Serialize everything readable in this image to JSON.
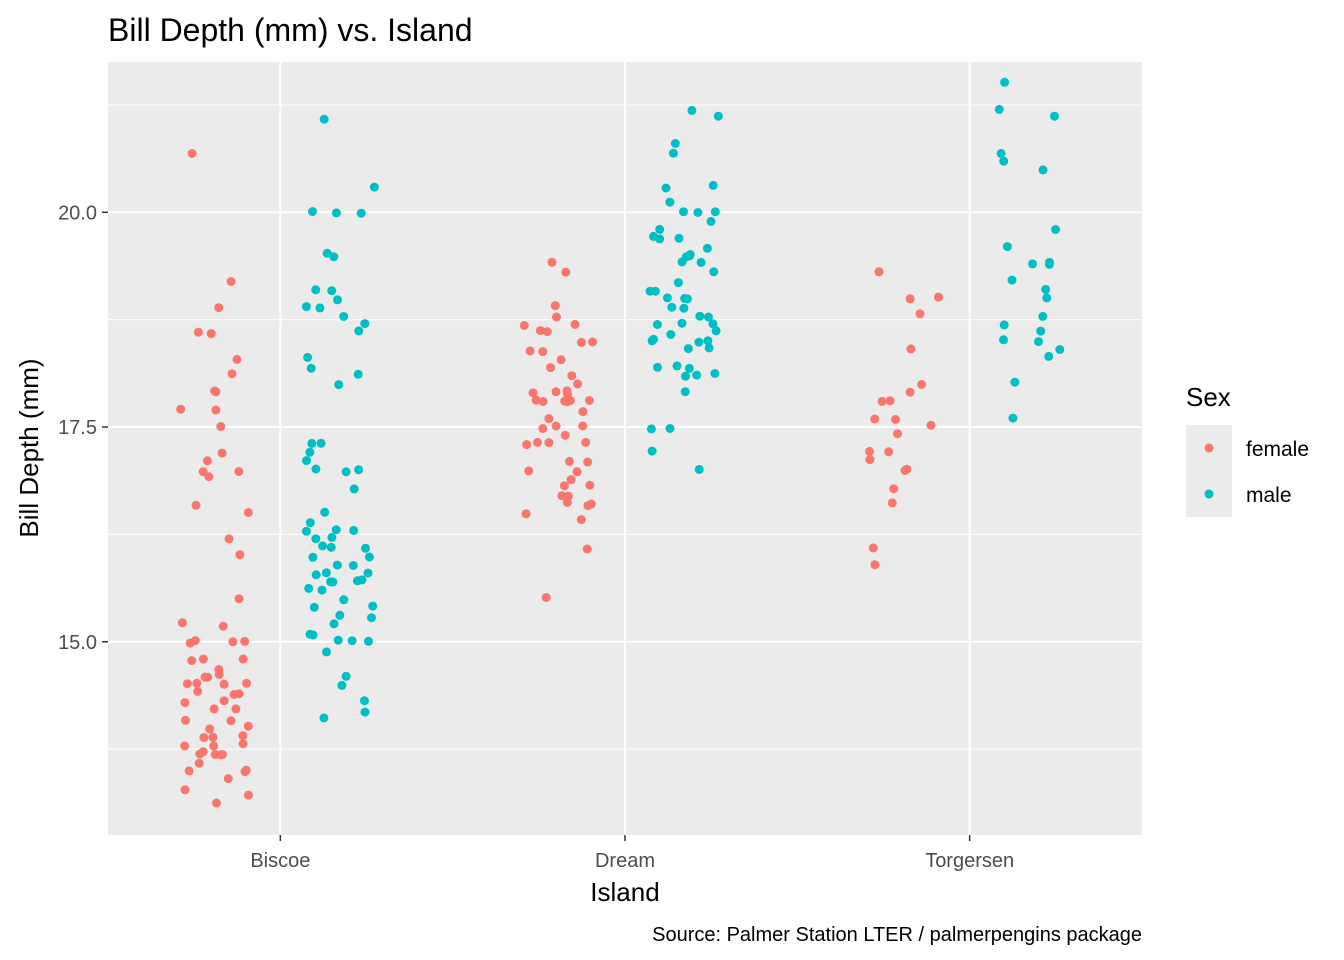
{
  "chart_data": {
    "type": "scatter",
    "title": "Bill Depth (mm) vs. Island",
    "xlabel": "Island",
    "ylabel": "Bill Depth (mm)",
    "caption": "Source: Palmer Station LTER / palmerpengins package",
    "categories": [
      "Biscoe",
      "Dream",
      "Torgersen"
    ],
    "ylim": [
      12.75,
      21.75
    ],
    "yticks": [
      15.0,
      17.5,
      20.0
    ],
    "ytick_labels": [
      "15.0",
      "17.5",
      "20.0"
    ],
    "grid": true,
    "legend": {
      "title": "Sex",
      "placement": "right",
      "entries": [
        "female",
        "male"
      ]
    },
    "colors": {
      "female": "#F8766D",
      "male": "#00BFC4"
    },
    "series": [
      {
        "name": "female",
        "points": [
          [
            "Biscoe",
            20.7
          ],
          [
            "Biscoe",
            19.2
          ],
          [
            "Biscoe",
            18.9
          ],
          [
            "Biscoe",
            18.6
          ],
          [
            "Biscoe",
            18.6
          ],
          [
            "Biscoe",
            18.3
          ],
          [
            "Biscoe",
            18.1
          ],
          [
            "Biscoe",
            17.9
          ],
          [
            "Biscoe",
            17.9
          ],
          [
            "Biscoe",
            17.7
          ],
          [
            "Biscoe",
            17.7
          ],
          [
            "Biscoe",
            17.5
          ],
          [
            "Biscoe",
            17.2
          ],
          [
            "Biscoe",
            17.1
          ],
          [
            "Biscoe",
            17.0
          ],
          [
            "Biscoe",
            17.0
          ],
          [
            "Biscoe",
            16.9
          ],
          [
            "Biscoe",
            16.6
          ],
          [
            "Biscoe",
            16.5
          ],
          [
            "Biscoe",
            16.2
          ],
          [
            "Biscoe",
            16.0
          ],
          [
            "Biscoe",
            15.5
          ],
          [
            "Biscoe",
            15.2
          ],
          [
            "Biscoe",
            15.2
          ],
          [
            "Biscoe",
            15.0
          ],
          [
            "Biscoe",
            15.0
          ],
          [
            "Biscoe",
            15.0
          ],
          [
            "Biscoe",
            15.0
          ],
          [
            "Biscoe",
            14.8
          ],
          [
            "Biscoe",
            14.8
          ],
          [
            "Biscoe",
            14.8
          ],
          [
            "Biscoe",
            14.7
          ],
          [
            "Biscoe",
            14.6
          ],
          [
            "Biscoe",
            14.6
          ],
          [
            "Biscoe",
            14.6
          ],
          [
            "Biscoe",
            14.5
          ],
          [
            "Biscoe",
            14.5
          ],
          [
            "Biscoe",
            14.5
          ],
          [
            "Biscoe",
            14.5
          ],
          [
            "Biscoe",
            14.4
          ],
          [
            "Biscoe",
            14.4
          ],
          [
            "Biscoe",
            14.4
          ],
          [
            "Biscoe",
            14.3
          ],
          [
            "Biscoe",
            14.3
          ],
          [
            "Biscoe",
            14.2
          ],
          [
            "Biscoe",
            14.2
          ],
          [
            "Biscoe",
            14.1
          ],
          [
            "Biscoe",
            14.1
          ],
          [
            "Biscoe",
            14.0
          ],
          [
            "Biscoe",
            14.0
          ],
          [
            "Biscoe",
            13.9
          ],
          [
            "Biscoe",
            13.9
          ],
          [
            "Biscoe",
            13.9
          ],
          [
            "Biscoe",
            13.8
          ],
          [
            "Biscoe",
            13.8
          ],
          [
            "Biscoe",
            13.8
          ],
          [
            "Biscoe",
            13.7
          ],
          [
            "Biscoe",
            13.7
          ],
          [
            "Biscoe",
            13.7
          ],
          [
            "Biscoe",
            13.7
          ],
          [
            "Biscoe",
            13.7
          ],
          [
            "Biscoe",
            13.6
          ],
          [
            "Biscoe",
            13.5
          ],
          [
            "Biscoe",
            13.5
          ],
          [
            "Biscoe",
            13.5
          ],
          [
            "Biscoe",
            13.4
          ],
          [
            "Biscoe",
            13.3
          ],
          [
            "Biscoe",
            13.2
          ],
          [
            "Biscoe",
            13.1
          ],
          [
            "Dream",
            19.4
          ],
          [
            "Dream",
            19.3
          ],
          [
            "Dream",
            18.9
          ],
          [
            "Dream",
            18.8
          ],
          [
            "Dream",
            18.7
          ],
          [
            "Dream",
            18.7
          ],
          [
            "Dream",
            18.6
          ],
          [
            "Dream",
            18.6
          ],
          [
            "Dream",
            18.5
          ],
          [
            "Dream",
            18.5
          ],
          [
            "Dream",
            18.4
          ],
          [
            "Dream",
            18.4
          ],
          [
            "Dream",
            18.3
          ],
          [
            "Dream",
            18.2
          ],
          [
            "Dream",
            18.1
          ],
          [
            "Dream",
            18.0
          ],
          [
            "Dream",
            17.9
          ],
          [
            "Dream",
            17.9
          ],
          [
            "Dream",
            17.9
          ],
          [
            "Dream",
            17.9
          ],
          [
            "Dream",
            17.8
          ],
          [
            "Dream",
            17.8
          ],
          [
            "Dream",
            17.8
          ],
          [
            "Dream",
            17.8
          ],
          [
            "Dream",
            17.8
          ],
          [
            "Dream",
            17.8
          ],
          [
            "Dream",
            17.7
          ],
          [
            "Dream",
            17.6
          ],
          [
            "Dream",
            17.5
          ],
          [
            "Dream",
            17.5
          ],
          [
            "Dream",
            17.5
          ],
          [
            "Dream",
            17.4
          ],
          [
            "Dream",
            17.3
          ],
          [
            "Dream",
            17.3
          ],
          [
            "Dream",
            17.3
          ],
          [
            "Dream",
            17.3
          ],
          [
            "Dream",
            17.1
          ],
          [
            "Dream",
            17.1
          ],
          [
            "Dream",
            17.0
          ],
          [
            "Dream",
            17.0
          ],
          [
            "Dream",
            16.9
          ],
          [
            "Dream",
            16.8
          ],
          [
            "Dream",
            16.8
          ],
          [
            "Dream",
            16.7
          ],
          [
            "Dream",
            16.7
          ],
          [
            "Dream",
            16.6
          ],
          [
            "Dream",
            16.6
          ],
          [
            "Dream",
            16.6
          ],
          [
            "Dream",
            16.5
          ],
          [
            "Dream",
            16.4
          ],
          [
            "Dream",
            16.1
          ],
          [
            "Dream",
            15.5
          ],
          [
            "Torgersen",
            19.3
          ],
          [
            "Torgersen",
            19.0
          ],
          [
            "Torgersen",
            19.0
          ],
          [
            "Torgersen",
            18.8
          ],
          [
            "Torgersen",
            18.4
          ],
          [
            "Torgersen",
            18.0
          ],
          [
            "Torgersen",
            17.9
          ],
          [
            "Torgersen",
            17.8
          ],
          [
            "Torgersen",
            17.8
          ],
          [
            "Torgersen",
            17.6
          ],
          [
            "Torgersen",
            17.6
          ],
          [
            "Torgersen",
            17.5
          ],
          [
            "Torgersen",
            17.4
          ],
          [
            "Torgersen",
            17.2
          ],
          [
            "Torgersen",
            17.2
          ],
          [
            "Torgersen",
            17.1
          ],
          [
            "Torgersen",
            17.0
          ],
          [
            "Torgersen",
            17.0
          ],
          [
            "Torgersen",
            16.8
          ],
          [
            "Torgersen",
            16.6
          ],
          [
            "Torgersen",
            16.1
          ],
          [
            "Torgersen",
            15.9
          ]
        ]
      },
      {
        "name": "male",
        "points": [
          [
            "Biscoe",
            21.1
          ],
          [
            "Biscoe",
            20.3
          ],
          [
            "Biscoe",
            20.0
          ],
          [
            "Biscoe",
            20.0
          ],
          [
            "Biscoe",
            20.0
          ],
          [
            "Biscoe",
            19.5
          ],
          [
            "Biscoe",
            19.5
          ],
          [
            "Biscoe",
            19.1
          ],
          [
            "Biscoe",
            19.1
          ],
          [
            "Biscoe",
            19.0
          ],
          [
            "Biscoe",
            18.9
          ],
          [
            "Biscoe",
            18.9
          ],
          [
            "Biscoe",
            18.8
          ],
          [
            "Biscoe",
            18.7
          ],
          [
            "Biscoe",
            18.6
          ],
          [
            "Biscoe",
            18.3
          ],
          [
            "Biscoe",
            18.2
          ],
          [
            "Biscoe",
            18.1
          ],
          [
            "Biscoe",
            18.0
          ],
          [
            "Biscoe",
            17.3
          ],
          [
            "Biscoe",
            17.3
          ],
          [
            "Biscoe",
            17.2
          ],
          [
            "Biscoe",
            17.1
          ],
          [
            "Biscoe",
            17.0
          ],
          [
            "Biscoe",
            17.0
          ],
          [
            "Biscoe",
            17.0
          ],
          [
            "Biscoe",
            16.8
          ],
          [
            "Biscoe",
            16.5
          ],
          [
            "Biscoe",
            16.4
          ],
          [
            "Biscoe",
            16.3
          ],
          [
            "Biscoe",
            16.3
          ],
          [
            "Biscoe",
            16.3
          ],
          [
            "Biscoe",
            16.2
          ],
          [
            "Biscoe",
            16.2
          ],
          [
            "Biscoe",
            16.1
          ],
          [
            "Biscoe",
            16.1
          ],
          [
            "Biscoe",
            16.1
          ],
          [
            "Biscoe",
            16.0
          ],
          [
            "Biscoe",
            16.0
          ],
          [
            "Biscoe",
            15.9
          ],
          [
            "Biscoe",
            15.9
          ],
          [
            "Biscoe",
            15.8
          ],
          [
            "Biscoe",
            15.8
          ],
          [
            "Biscoe",
            15.8
          ],
          [
            "Biscoe",
            15.7
          ],
          [
            "Biscoe",
            15.7
          ],
          [
            "Biscoe",
            15.7
          ],
          [
            "Biscoe",
            15.7
          ],
          [
            "Biscoe",
            15.6
          ],
          [
            "Biscoe",
            15.6
          ],
          [
            "Biscoe",
            15.5
          ],
          [
            "Biscoe",
            15.4
          ],
          [
            "Biscoe",
            15.4
          ],
          [
            "Biscoe",
            15.3
          ],
          [
            "Biscoe",
            15.3
          ],
          [
            "Biscoe",
            15.2
          ],
          [
            "Biscoe",
            15.1
          ],
          [
            "Biscoe",
            15.1
          ],
          [
            "Biscoe",
            15.0
          ],
          [
            "Biscoe",
            15.0
          ],
          [
            "Biscoe",
            15.0
          ],
          [
            "Biscoe",
            14.9
          ],
          [
            "Biscoe",
            14.6
          ],
          [
            "Biscoe",
            14.5
          ],
          [
            "Biscoe",
            14.3
          ],
          [
            "Biscoe",
            14.2
          ],
          [
            "Biscoe",
            14.1
          ],
          [
            "Dream",
            21.2
          ],
          [
            "Dream",
            21.1
          ],
          [
            "Dream",
            20.8
          ],
          [
            "Dream",
            20.7
          ],
          [
            "Dream",
            20.3
          ],
          [
            "Dream",
            20.3
          ],
          [
            "Dream",
            20.1
          ],
          [
            "Dream",
            20.0
          ],
          [
            "Dream",
            20.0
          ],
          [
            "Dream",
            20.0
          ],
          [
            "Dream",
            19.9
          ],
          [
            "Dream",
            19.8
          ],
          [
            "Dream",
            19.7
          ],
          [
            "Dream",
            19.7
          ],
          [
            "Dream",
            19.7
          ],
          [
            "Dream",
            19.6
          ],
          [
            "Dream",
            19.5
          ],
          [
            "Dream",
            19.5
          ],
          [
            "Dream",
            19.5
          ],
          [
            "Dream",
            19.4
          ],
          [
            "Dream",
            19.4
          ],
          [
            "Dream",
            19.3
          ],
          [
            "Dream",
            19.2
          ],
          [
            "Dream",
            19.1
          ],
          [
            "Dream",
            19.1
          ],
          [
            "Dream",
            19.0
          ],
          [
            "Dream",
            19.0
          ],
          [
            "Dream",
            19.0
          ],
          [
            "Dream",
            18.9
          ],
          [
            "Dream",
            18.9
          ],
          [
            "Dream",
            18.8
          ],
          [
            "Dream",
            18.8
          ],
          [
            "Dream",
            18.7
          ],
          [
            "Dream",
            18.7
          ],
          [
            "Dream",
            18.7
          ],
          [
            "Dream",
            18.6
          ],
          [
            "Dream",
            18.6
          ],
          [
            "Dream",
            18.5
          ],
          [
            "Dream",
            18.5
          ],
          [
            "Dream",
            18.5
          ],
          [
            "Dream",
            18.5
          ],
          [
            "Dream",
            18.4
          ],
          [
            "Dream",
            18.4
          ],
          [
            "Dream",
            18.2
          ],
          [
            "Dream",
            18.2
          ],
          [
            "Dream",
            18.2
          ],
          [
            "Dream",
            18.1
          ],
          [
            "Dream",
            18.1
          ],
          [
            "Dream",
            18.1
          ],
          [
            "Dream",
            17.9
          ],
          [
            "Dream",
            17.5
          ],
          [
            "Dream",
            17.5
          ],
          [
            "Dream",
            17.2
          ],
          [
            "Dream",
            17.0
          ],
          [
            "Torgersen",
            21.5
          ],
          [
            "Torgersen",
            21.2
          ],
          [
            "Torgersen",
            21.1
          ],
          [
            "Torgersen",
            20.7
          ],
          [
            "Torgersen",
            20.6
          ],
          [
            "Torgersen",
            20.5
          ],
          [
            "Torgersen",
            19.8
          ],
          [
            "Torgersen",
            19.6
          ],
          [
            "Torgersen",
            19.4
          ],
          [
            "Torgersen",
            19.4
          ],
          [
            "Torgersen",
            19.4
          ],
          [
            "Torgersen",
            19.2
          ],
          [
            "Torgersen",
            19.1
          ],
          [
            "Torgersen",
            19.0
          ],
          [
            "Torgersen",
            18.8
          ],
          [
            "Torgersen",
            18.7
          ],
          [
            "Torgersen",
            18.6
          ],
          [
            "Torgersen",
            18.5
          ],
          [
            "Torgersen",
            18.5
          ],
          [
            "Torgersen",
            18.4
          ],
          [
            "Torgersen",
            18.3
          ],
          [
            "Torgersen",
            18.0
          ],
          [
            "Torgersen",
            17.6
          ]
        ]
      }
    ]
  }
}
